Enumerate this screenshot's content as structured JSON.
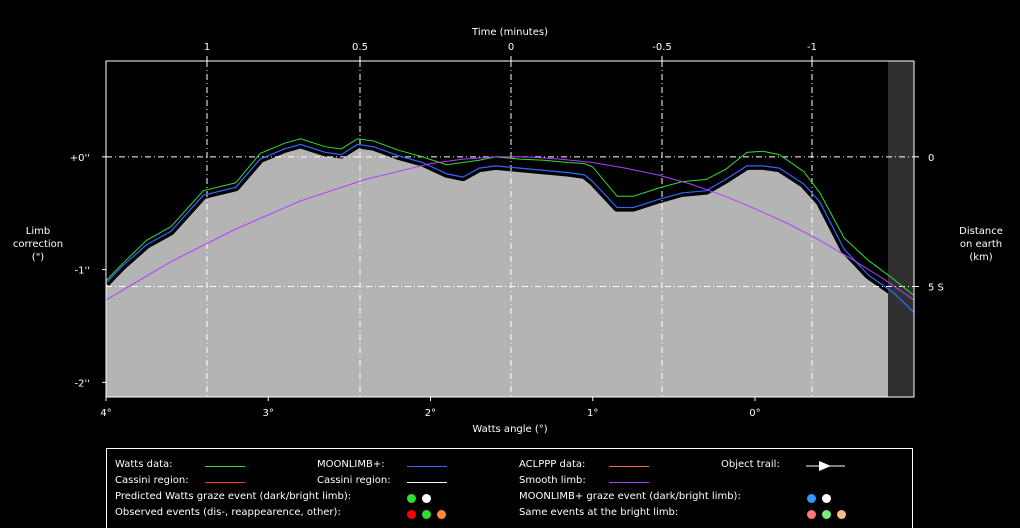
{
  "chart_data": {
    "type": "area",
    "top_axis": {
      "label": "Time (minutes)",
      "ticks": [
        1,
        0.5,
        0,
        -0.5,
        -1
      ]
    },
    "bottom_axis": {
      "label": "Watts angle (°)",
      "tick_values": [
        4,
        3,
        2,
        1,
        0
      ],
      "tick_labels": [
        "4°",
        "3°",
        "2°",
        "1°",
        "0°"
      ],
      "range": [
        4,
        -0.98
      ]
    },
    "left_axis": {
      "label_lines": [
        "Limb",
        "correction",
        "(\")"
      ],
      "tick_values": [
        0,
        -1,
        -2
      ],
      "tick_labels": [
        "+0''",
        "-1''",
        "-2''"
      ],
      "range": [
        -2.13,
        0.85
      ]
    },
    "right_axis": {
      "label_lines": [
        "Distance",
        "on earth",
        "(km)"
      ],
      "ticks": [
        {
          "label": "0",
          "limb": 0
        },
        {
          "label": "5 S",
          "limb": -1.15
        }
      ]
    },
    "grid": true,
    "series": [
      {
        "name": "Watts data",
        "color": "#33dd33",
        "x": [
          4,
          3.9,
          3.75,
          3.6,
          3.4,
          3.2,
          3.05,
          2.9,
          2.8,
          2.65,
          2.55,
          2.45,
          2.35,
          2.2,
          2.05,
          1.9,
          1.8,
          1.7,
          1.6,
          1.45,
          1.3,
          1.15,
          1.05,
          1.0,
          0.85,
          0.75,
          0.6,
          0.45,
          0.3,
          0.18,
          0.05,
          -0.05,
          -0.15,
          -0.3,
          -0.4,
          -0.55,
          -0.7,
          -0.85,
          -0.98
        ],
        "y": [
          -1.1,
          -0.95,
          -0.74,
          -0.62,
          -0.3,
          -0.23,
          0.03,
          0.12,
          0.16,
          0.09,
          0.07,
          0.16,
          0.14,
          0.06,
          0.0,
          -0.07,
          -0.05,
          -0.03,
          0.0,
          -0.02,
          -0.03,
          -0.05,
          -0.06,
          -0.09,
          -0.35,
          -0.35,
          -0.28,
          -0.22,
          -0.2,
          -0.11,
          0.04,
          0.05,
          0.02,
          -0.13,
          -0.32,
          -0.72,
          -0.92,
          -1.08,
          -1.23
        ]
      },
      {
        "name": "MOONLIMB+",
        "color": "#3366ff",
        "x": [
          4,
          3.9,
          3.75,
          3.6,
          3.4,
          3.2,
          3.05,
          2.9,
          2.8,
          2.65,
          2.55,
          2.45,
          2.35,
          2.2,
          2.05,
          1.9,
          1.8,
          1.7,
          1.6,
          1.45,
          1.3,
          1.15,
          1.05,
          1.0,
          0.85,
          0.75,
          0.6,
          0.45,
          0.3,
          0.18,
          0.05,
          -0.05,
          -0.15,
          -0.3,
          -0.4,
          -0.55,
          -0.7,
          -0.85,
          -0.98
        ],
        "y": [
          -1.12,
          -0.97,
          -0.78,
          -0.66,
          -0.34,
          -0.27,
          -0.02,
          0.07,
          0.11,
          0.04,
          0.02,
          0.11,
          0.09,
          0.01,
          -0.05,
          -0.15,
          -0.18,
          -0.1,
          -0.08,
          -0.1,
          -0.12,
          -0.14,
          -0.16,
          -0.22,
          -0.45,
          -0.45,
          -0.38,
          -0.32,
          -0.3,
          -0.2,
          -0.08,
          -0.08,
          -0.1,
          -0.24,
          -0.4,
          -0.82,
          -1.05,
          -1.2,
          -1.38
        ]
      },
      {
        "name": "Smooth limb",
        "color": "#b23dff",
        "x": [
          4.0,
          3.6,
          3.2,
          2.8,
          2.4,
          2.0,
          1.8,
          1.6,
          1.4,
          1.2,
          1.0,
          0.8,
          0.6,
          0.4,
          0.2,
          0.0,
          -0.2,
          -0.4,
          -0.6,
          -0.8,
          -0.98
        ],
        "y": [
          -1.27,
          -0.93,
          -0.64,
          -0.39,
          -0.2,
          -0.06,
          -0.02,
          0.0,
          -0.0,
          -0.02,
          -0.05,
          -0.1,
          -0.16,
          -0.24,
          -0.34,
          -0.46,
          -0.59,
          -0.74,
          -0.91,
          -1.09,
          -1.27
        ]
      }
    ]
  },
  "legend": {
    "rows": [
      {
        "label": "Watts data:",
        "color": "#33dd33"
      },
      {
        "label": "MOONLIMB+:",
        "color": "#3366ff"
      },
      {
        "label": "ACLPPP data:",
        "color": "#ff6633"
      },
      {
        "label": "Object trail:",
        "color": "#ffffff"
      },
      {
        "label": "Cassini region:",
        "color": "#ff3333"
      },
      {
        "label": "Cassini region:",
        "color": "#ffffff"
      },
      {
        "label": "Smooth limb:",
        "color": "#b23dff"
      }
    ],
    "events": [
      {
        "label": "Predicted Watts graze event (dark/bright limb):",
        "dots": [
          "#33dd33",
          "#ffffff"
        ]
      },
      {
        "label": "MOONLIMB+ graze event (dark/bright limb):",
        "dots": [
          "#3399ff",
          "#ffffff"
        ]
      },
      {
        "label": "Observed events (dis-, reappearence, other):",
        "dots": [
          "#ff0000",
          "#33dd33",
          "#ff8833"
        ]
      },
      {
        "label": "Same events at the bright limb:",
        "dots": [
          "#ff7777",
          "#77ee77",
          "#ffbb88"
        ]
      }
    ]
  },
  "colors": {
    "fill": "#b4b4b4",
    "band": "#000000",
    "dark_region": "#303030",
    "grid": "#ffffff"
  }
}
